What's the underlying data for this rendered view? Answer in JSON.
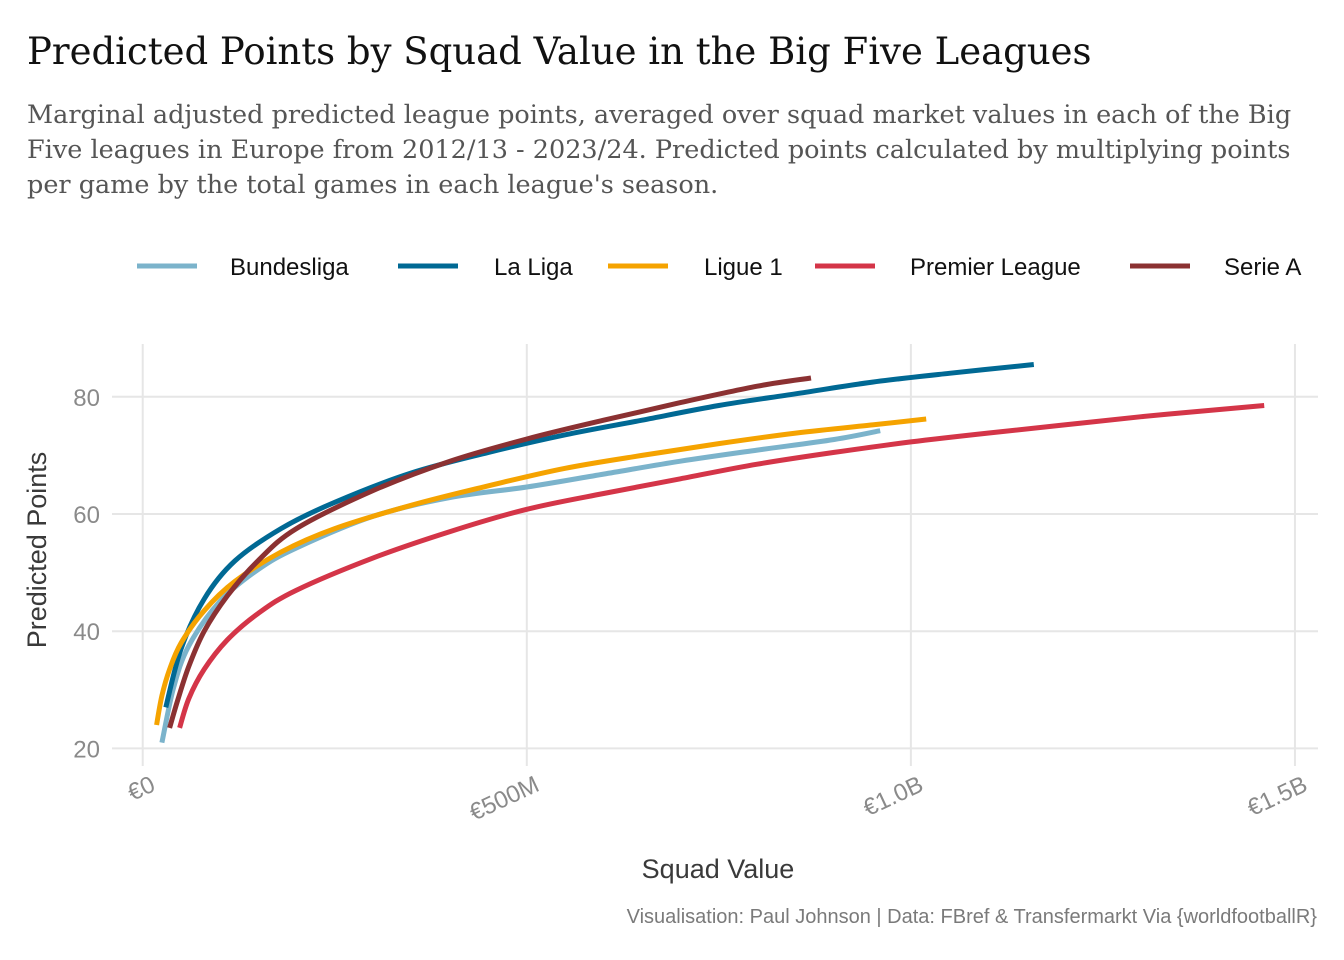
{
  "title": "Predicted Points by Squad Value in the Big Five Leagues",
  "subtitle": "Marginal adjusted predicted league points, averaged over squad market values in each of the Big Five leagues in Europe from 2012/13 - 2023/24. Predicted points calculated by multiplying points per game by the total games in each league's season.",
  "caption": "Visualisation: Paul Johnson | Data: FBref & Transfermarkt Via {worldfootballR}",
  "chart_data": {
    "type": "line",
    "xlabel": "Squad Value",
    "ylabel": "Predicted Points",
    "xlim": [
      -40,
      1530
    ],
    "ylim": [
      17,
      89
    ],
    "x_ticks": [
      0,
      500,
      1000,
      1500
    ],
    "x_tick_labels": [
      "€0",
      "€500M",
      "€1.0B",
      "€1.5B"
    ],
    "x_unit": "€ millions",
    "y_ticks": [
      20,
      40,
      60,
      80
    ],
    "y_tick_labels": [
      "20",
      "40",
      "60",
      "80"
    ],
    "grid": true,
    "legend_position": "top",
    "series": [
      {
        "name": "Bundesliga",
        "color": "#7bb3cb",
        "x": [
          25,
          40,
          60,
          100,
          150,
          200,
          300,
          400,
          500,
          600,
          700,
          800,
          900,
          960
        ],
        "y": [
          21.0,
          30.3,
          37.5,
          45.0,
          50.5,
          54.2,
          59.6,
          62.8,
          64.6,
          66.8,
          69.0,
          70.9,
          72.7,
          74.2
        ]
      },
      {
        "name": "La Liga",
        "color": "#006994",
        "x": [
          30,
          50,
          80,
          120,
          180,
          250,
          350,
          450,
          550,
          650,
          750,
          850,
          950,
          1050,
          1160
        ],
        "y": [
          27.0,
          37.0,
          45.5,
          52.0,
          57.5,
          62.0,
          67.0,
          70.5,
          73.5,
          76.0,
          78.5,
          80.5,
          82.5,
          84.0,
          85.5
        ]
      },
      {
        "name": "Ligue 1",
        "color": "#f5a300",
        "x": [
          18,
          25,
          35,
          50,
          80,
          120,
          180,
          250,
          350,
          450,
          550,
          650,
          750,
          850,
          950,
          1020
        ],
        "y": [
          24.0,
          29.0,
          33.5,
          38.0,
          43.5,
          48.5,
          53.5,
          57.5,
          61.5,
          64.8,
          67.8,
          70.0,
          72.0,
          73.8,
          75.2,
          76.2
        ]
      },
      {
        "name": "Premier League",
        "color": "#d43548",
        "x": [
          48,
          60,
          80,
          110,
          150,
          200,
          300,
          400,
          500,
          600,
          700,
          800,
          900,
          1000,
          1100,
          1200,
          1300,
          1400,
          1460
        ],
        "y": [
          23.5,
          28.5,
          33.5,
          38.5,
          43.0,
          47.0,
          52.5,
          57.0,
          60.8,
          63.5,
          66.0,
          68.5,
          70.5,
          72.3,
          73.8,
          75.2,
          76.6,
          77.8,
          78.5
        ]
      },
      {
        "name": "Serie A",
        "color": "#8b3132",
        "x": [
          35,
          45,
          60,
          80,
          110,
          150,
          200,
          300,
          400,
          500,
          600,
          700,
          800,
          870
        ],
        "y": [
          23.5,
          28.0,
          34.0,
          40.0,
          46.0,
          52.0,
          57.5,
          64.0,
          69.0,
          72.8,
          76.0,
          79.0,
          81.8,
          83.2
        ]
      }
    ]
  }
}
